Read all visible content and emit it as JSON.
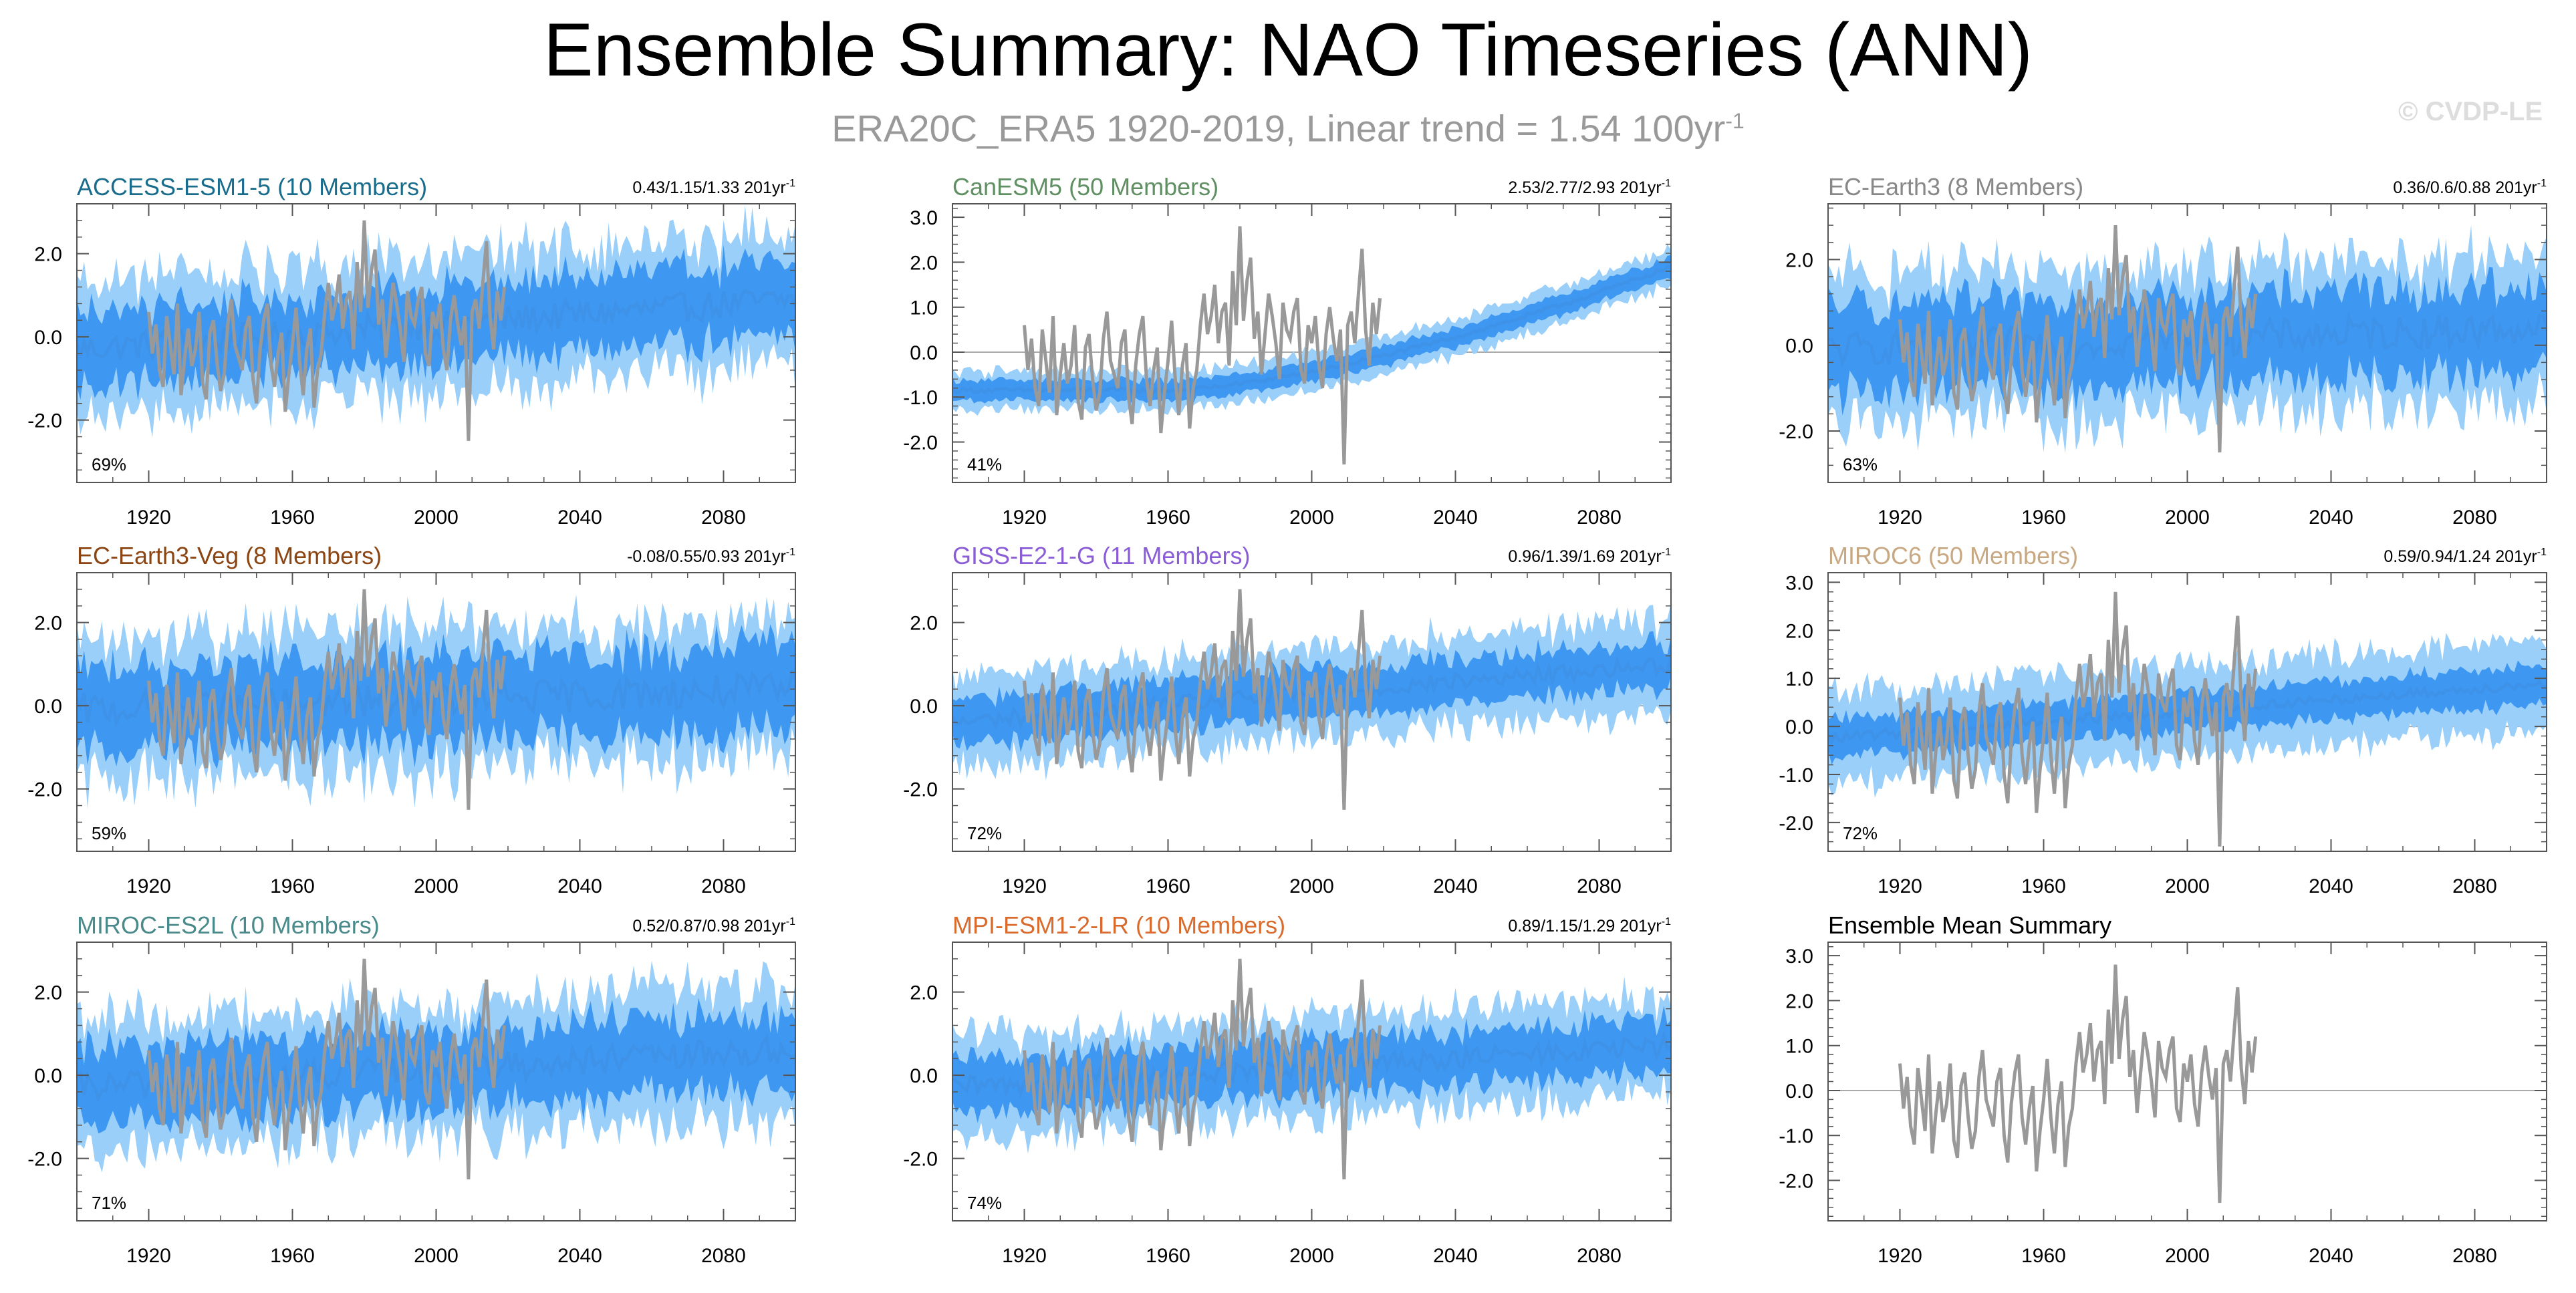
{
  "title": "Ensemble Summary: NAO Timeseries (ANN)",
  "subtitle": {
    "text": "ERA20C_ERA5 1920-2019, Linear trend = 1.54 100yr",
    "superscript": "-1"
  },
  "watermark": "© CVDP-LE",
  "colors": {
    "inner_band": "#2E8EF0",
    "outer_band": "#9ACFFA",
    "ensemble_mean": "#3E92E8",
    "observations": "#999999",
    "zero_line": "#aaaaaa",
    "axis": "#555555"
  },
  "chart_data": [
    {
      "type": "area",
      "panel": "ACCESS-ESM1-5 (10 Members)",
      "title_color": "#1A6C8C",
      "trend_label": "0.43/1.15/1.33 201yr",
      "trend_sup": "-1",
      "percent_label": "69%",
      "x_range": [
        1900,
        2100
      ],
      "ylim": [
        -3.5,
        3.2
      ],
      "yticks": [
        -2.0,
        0.0,
        2.0
      ],
      "ytick_labels": [
        "-2.0",
        "0.0",
        "2.0"
      ],
      "xticks": [
        1920,
        1960,
        2000,
        2040,
        2080
      ],
      "xtick_labels": [
        "1920",
        "1960",
        "2000",
        "2040",
        "2080"
      ],
      "mean_start": -0.3,
      "mean_end": 0.9,
      "inner_halfwidth": 0.9,
      "outer_halfwidth": 1.6,
      "noise": 0.35
    },
    {
      "type": "area",
      "panel": "CanESM5 (50 Members)",
      "title_color": "#5F8F62",
      "trend_label": "2.53/2.77/2.93 201yr",
      "trend_sup": "-1",
      "percent_label": "41%",
      "x_range": [
        1900,
        2100
      ],
      "ylim": [
        -2.9,
        3.3
      ],
      "yticks": [
        -2.0,
        -1.0,
        0.0,
        1.0,
        2.0,
        3.0
      ],
      "ytick_labels": [
        "-2.0",
        "-1.0",
        "0.0",
        "1.0",
        "2.0",
        "3.0"
      ],
      "xticks": [
        1920,
        1960,
        2000,
        2040,
        2080
      ],
      "xtick_labels": [
        "1920",
        "1960",
        "2000",
        "2040",
        "2080"
      ],
      "mean_start": -0.85,
      "mean_end": 1.9,
      "inner_halfwidth": 0.22,
      "outer_halfwidth": 0.42,
      "noise": 0.05,
      "curved": true
    },
    {
      "type": "area",
      "panel": "EC-Earth3 (8 Members)",
      "title_color": "#888888",
      "trend_label": "0.36/0.6/0.88 201yr",
      "trend_sup": "-1",
      "percent_label": "63%",
      "x_range": [
        1900,
        2100
      ],
      "ylim": [
        -3.2,
        3.3
      ],
      "yticks": [
        -2.0,
        0.0,
        2.0
      ],
      "ytick_labels": [
        "-2.0",
        "0.0",
        "2.0"
      ],
      "xticks": [
        1920,
        1960,
        2000,
        2040,
        2080
      ],
      "xtick_labels": [
        "1920",
        "1960",
        "2000",
        "2040",
        "2080"
      ],
      "mean_start": -0.1,
      "mean_end": 0.4,
      "inner_halfwidth": 1.0,
      "outer_halfwidth": 1.7,
      "noise": 0.4
    },
    {
      "type": "area",
      "panel": "EC-Earth3-Veg (8 Members)",
      "title_color": "#8B4513",
      "trend_label": "-0.08/0.55/0.93 201yr",
      "trend_sup": "-1",
      "percent_label": "59%",
      "x_range": [
        1900,
        2100
      ],
      "ylim": [
        -3.5,
        3.2
      ],
      "yticks": [
        -2.0,
        0.0,
        2.0
      ],
      "ytick_labels": [
        "-2.0",
        "0.0",
        "2.0"
      ],
      "xticks": [
        1920,
        1960,
        2000,
        2040,
        2080
      ],
      "xtick_labels": [
        "1920",
        "1960",
        "2000",
        "2040",
        "2080"
      ],
      "mean_start": -0.1,
      "mean_end": 0.4,
      "inner_halfwidth": 1.0,
      "outer_halfwidth": 1.7,
      "noise": 0.4
    },
    {
      "type": "area",
      "panel": "GISS-E2-1-G (11 Members)",
      "title_color": "#8A5CD6",
      "trend_label": "0.96/1.39/1.69 201yr",
      "trend_sup": "-1",
      "percent_label": "72%",
      "x_range": [
        1900,
        2100
      ],
      "ylim": [
        -3.5,
        3.2
      ],
      "yticks": [
        -2.0,
        0.0,
        2.0
      ],
      "ytick_labels": [
        "-2.0",
        "0.0",
        "2.0"
      ],
      "xticks": [
        1920,
        1960,
        2000,
        2040,
        2080
      ],
      "xtick_labels": [
        "1920",
        "1960",
        "2000",
        "2040",
        "2080"
      ],
      "mean_start": -0.4,
      "mean_end": 1.0,
      "inner_halfwidth": 0.55,
      "outer_halfwidth": 1.1,
      "noise": 0.2
    },
    {
      "type": "area",
      "panel": "MIROC6 (50 Members)",
      "title_color": "#C8A882",
      "trend_label": "0.59/0.94/1.24 201yr",
      "trend_sup": "-1",
      "percent_label": "72%",
      "x_range": [
        1900,
        2100
      ],
      "ylim": [
        -2.6,
        3.2
      ],
      "yticks": [
        -2.0,
        -1.0,
        0.0,
        1.0,
        2.0,
        3.0
      ],
      "ytick_labels": [
        "-2.0",
        "-1.0",
        "0.0",
        "1.0",
        "2.0",
        "3.0"
      ],
      "xticks": [
        1920,
        1960,
        2000,
        2040,
        2080
      ],
      "xtick_labels": [
        "1920",
        "1960",
        "2000",
        "2040",
        "2080"
      ],
      "mean_start": -0.25,
      "mean_end": 0.9,
      "inner_halfwidth": 0.4,
      "outer_halfwidth": 0.95,
      "noise": 0.1
    },
    {
      "type": "area",
      "panel": "MIROC-ES2L (10 Members)",
      "title_color": "#4A8A8A",
      "trend_label": "0.52/0.87/0.98 201yr",
      "trend_sup": "-1",
      "percent_label": "71%",
      "x_range": [
        1900,
        2100
      ],
      "ylim": [
        -3.5,
        3.2
      ],
      "yticks": [
        -2.0,
        0.0,
        2.0
      ],
      "ytick_labels": [
        "-2.0",
        "0.0",
        "2.0"
      ],
      "xticks": [
        1920,
        1960,
        2000,
        2040,
        2080
      ],
      "xtick_labels": [
        "1920",
        "1960",
        "2000",
        "2040",
        "2080"
      ],
      "mean_start": -0.3,
      "mean_end": 0.6,
      "inner_halfwidth": 0.9,
      "outer_halfwidth": 1.6,
      "noise": 0.35
    },
    {
      "type": "area",
      "panel": "MPI-ESM1-2-LR (10 Members)",
      "title_color": "#D96B2E",
      "trend_label": "0.89/1.15/1.29 201yr",
      "trend_sup": "-1",
      "percent_label": "74%",
      "x_range": [
        1900,
        2100
      ],
      "ylim": [
        -3.5,
        3.2
      ],
      "yticks": [
        -2.0,
        0.0,
        2.0
      ],
      "ytick_labels": [
        "-2.0",
        "0.0",
        "2.0"
      ],
      "xticks": [
        1920,
        1960,
        2000,
        2040,
        2080
      ],
      "xtick_labels": [
        "1920",
        "1960",
        "2000",
        "2040",
        "2080"
      ],
      "mean_start": -0.3,
      "mean_end": 0.7,
      "inner_halfwidth": 0.65,
      "outer_halfwidth": 1.2,
      "noise": 0.25
    },
    {
      "type": "line",
      "panel": "Ensemble Mean Summary",
      "title_color": "#000000",
      "trend_label": "",
      "trend_sup": "",
      "percent_label": "",
      "x_range": [
        1900,
        2100
      ],
      "ylim": [
        -2.9,
        3.3
      ],
      "yticks": [
        -2.0,
        -1.0,
        0.0,
        1.0,
        2.0,
        3.0
      ],
      "ytick_labels": [
        "-2.0",
        "-1.0",
        "0.0",
        "1.0",
        "2.0",
        "3.0"
      ],
      "xticks": [
        1920,
        1960,
        2000,
        2040,
        2080
      ],
      "xtick_labels": [
        "1920",
        "1960",
        "2000",
        "2040",
        "2080"
      ],
      "series": [
        {
          "name": "ACCESS-ESM1-5",
          "color": "#1A6C8C",
          "start": -0.3,
          "end": 0.9,
          "noise": 0.35
        },
        {
          "name": "EC-Earth3",
          "color": "#888888",
          "start": -0.1,
          "end": 0.4,
          "noise": 0.35
        },
        {
          "name": "EC-Earth3-Veg",
          "color": "#8B4513",
          "start": -0.1,
          "end": 0.4,
          "noise": 0.4
        },
        {
          "name": "GISS-E2-1-G",
          "color": "#8A5CD6",
          "start": -0.4,
          "end": 1.0,
          "noise": 0.2
        },
        {
          "name": "MIROC6",
          "color": "#C8A882",
          "start": -0.25,
          "end": 0.9,
          "noise": 0.1
        },
        {
          "name": "MIROC-ES2L",
          "color": "#4A8A8A",
          "start": -0.3,
          "end": 0.6,
          "noise": 0.3
        },
        {
          "name": "MPI-ESM1-2-LR",
          "color": "#D96B2E",
          "start": -0.3,
          "end": 0.7,
          "noise": 0.3
        },
        {
          "name": "CanESM5",
          "color": "#5F8F62",
          "start": -0.85,
          "end": 1.9,
          "noise": 0.05,
          "curved": true
        }
      ]
    }
  ],
  "observations": {
    "name": "ERA20C_ERA5",
    "start_year": 1920,
    "end_year": 2019,
    "values": [
      0.6,
      -0.4,
      0.3,
      -0.8,
      -1.2,
      0.5,
      -0.2,
      -0.9,
      0.8,
      -1.4,
      -0.5,
      0.2,
      -0.7,
      -0.3,
      0.6,
      -1.1,
      -1.5,
      0.1,
      0.4,
      -0.6,
      -1.3,
      -0.9,
      0.3,
      0.9,
      -0.2,
      -0.5,
      -0.8,
      0.2,
      0.5,
      -1.0,
      -1.6,
      -0.3,
      0.4,
      0.8,
      -0.6,
      -1.2,
      -0.4,
      0.1,
      -1.8,
      -0.9,
      -0.2,
      0.7,
      -0.6,
      -1.4,
      -0.3,
      0.2,
      -1.7,
      -0.8,
      -0.4,
      0.6,
      1.3,
      0.4,
      0.8,
      1.5,
      0.2,
      0.9,
      1.1,
      -0.3,
      1.8,
      0.6,
      2.8,
      0.7,
      1.6,
      2.1,
      0.3,
      0.9,
      -0.5,
      0.4,
      1.3,
      0.8,
      0.2,
      -0.6,
      1.1,
      0.5,
      0.3,
      0.9,
      1.2,
      -0.4,
      -0.7,
      0.6,
      0.2,
      0.8,
      -0.3,
      -0.8,
      0.4,
      1.0,
      0.3,
      -0.2,
      0.5,
      -2.5,
      0.6,
      0.9,
      0.2,
      1.3,
      2.3,
      0.5,
      -0.3,
      1.1,
      0.4,
      1.2
    ]
  }
}
